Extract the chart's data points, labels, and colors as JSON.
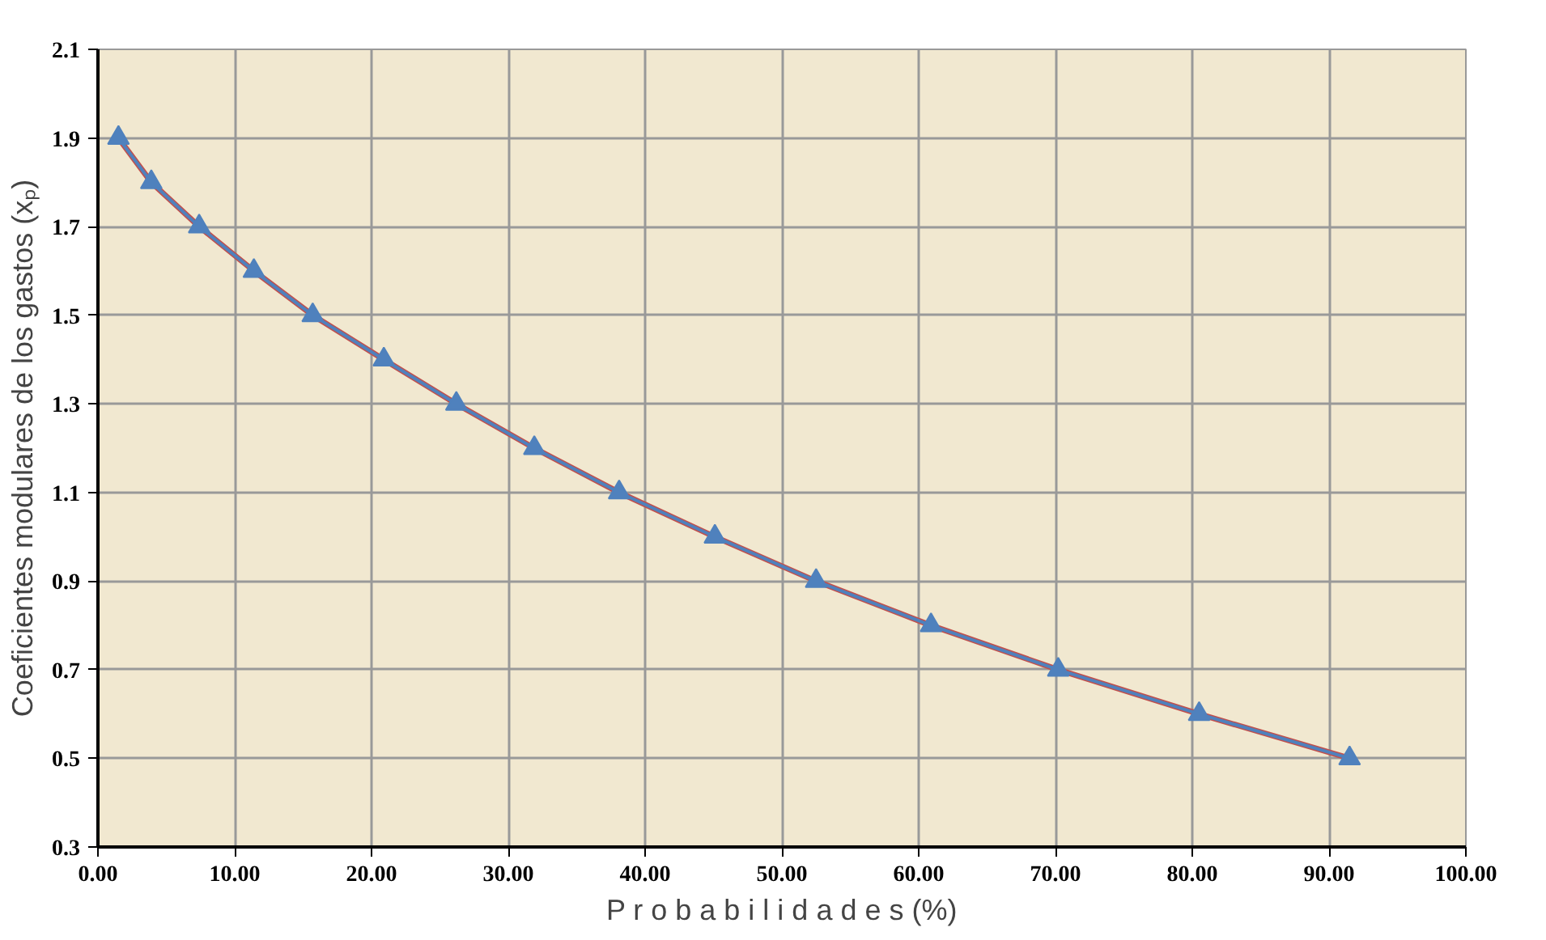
{
  "chart_data": {
    "type": "line",
    "xlabel": "P r o b a b i l i d a d e s (%)",
    "ylabel": "Coeficientes modulares de los gastos (xₚ)",
    "xlim": [
      0,
      100
    ],
    "xticks": [
      {
        "value": 0,
        "label": "0.00"
      },
      {
        "value": 10,
        "label": "10.00"
      },
      {
        "value": 20,
        "label": "20.00"
      },
      {
        "value": 30,
        "label": "30.00"
      },
      {
        "value": 40,
        "label": "40.00"
      },
      {
        "value": 50,
        "label": "50.00"
      },
      {
        "value": 60,
        "label": "60.00"
      },
      {
        "value": 70,
        "label": "70.00"
      },
      {
        "value": 80,
        "label": "80.00"
      },
      {
        "value": 90,
        "label": "90.00"
      },
      {
        "value": 100,
        "label": "100.00"
      }
    ],
    "ylim": [
      0.3,
      2.1
    ],
    "yticks": [
      0.3,
      0.5,
      0.7,
      0.9,
      1.1,
      1.3,
      1.5,
      1.7,
      1.9,
      2.1
    ],
    "grid": true,
    "series": [
      {
        "color": "#c0504d",
        "marker": "none",
        "x": [
          1.5,
          3.9,
          7.4,
          11.4,
          15.7,
          20.9,
          26.2,
          31.9,
          38.1,
          45.1,
          52.5,
          60.9,
          70.2,
          80.5,
          91.5
        ],
        "values": [
          1.9,
          1.8,
          1.7,
          1.6,
          1.5,
          1.4,
          1.3,
          1.2,
          1.1,
          1.0,
          0.9,
          0.8,
          0.7,
          0.6,
          0.5
        ]
      },
      {
        "color": "#4f81bd",
        "marker": "triangle",
        "x": [
          1.5,
          3.9,
          7.4,
          11.4,
          15.7,
          20.9,
          26.2,
          31.9,
          38.1,
          45.1,
          52.5,
          60.9,
          70.2,
          80.5,
          91.5
        ],
        "values": [
          1.9,
          1.8,
          1.7,
          1.6,
          1.5,
          1.4,
          1.3,
          1.2,
          1.1,
          1.0,
          0.9,
          0.8,
          0.7,
          0.6,
          0.5
        ]
      }
    ]
  }
}
